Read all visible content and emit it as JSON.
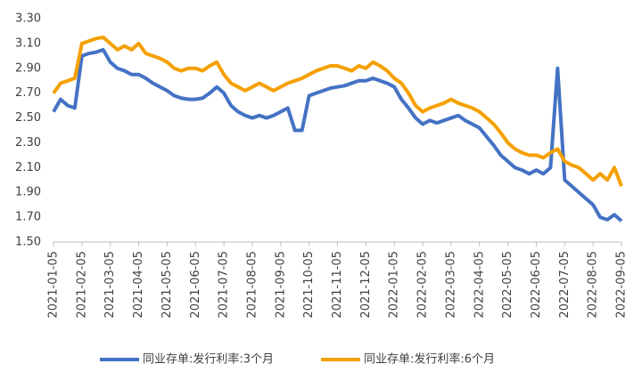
{
  "chart_data": {
    "type": "line",
    "categories": [
      "2021-01-05",
      null,
      null,
      null,
      "2021-02-05",
      null,
      null,
      null,
      "2021-03-05",
      null,
      null,
      null,
      "2021-04-05",
      null,
      null,
      null,
      "2021-05-05",
      null,
      null,
      null,
      "2021-06-05",
      null,
      null,
      null,
      "2021-07-05",
      null,
      null,
      null,
      "2021-08-05",
      null,
      null,
      null,
      "2021-09-05",
      null,
      null,
      null,
      "2021-10-05",
      null,
      null,
      null,
      "2021-11-05",
      null,
      null,
      null,
      "2021-12-05",
      null,
      null,
      null,
      "2022-01-05",
      null,
      null,
      null,
      "2022-02-05",
      null,
      null,
      null,
      "2022-03-05",
      null,
      null,
      null,
      "2022-04-05",
      null,
      null,
      null,
      "2022-05-05",
      null,
      null,
      null,
      "2022-06-05",
      null,
      null,
      null,
      "2022-07-05",
      null,
      null,
      null,
      "2022-08-05",
      null,
      null,
      null,
      "2022-09-05"
    ],
    "series": [
      {
        "name": "同业存单:发行利率:3个月",
        "color": "#4472c4",
        "values": [
          2.55,
          2.65,
          2.6,
          2.58,
          3.0,
          3.02,
          3.03,
          3.05,
          2.95,
          2.9,
          2.88,
          2.85,
          2.85,
          2.82,
          2.78,
          2.75,
          2.72,
          2.68,
          2.66,
          2.65,
          2.65,
          2.66,
          2.7,
          2.75,
          2.7,
          2.6,
          2.55,
          2.52,
          2.5,
          2.52,
          2.5,
          2.52,
          2.55,
          2.58,
          2.4,
          2.4,
          2.68,
          2.7,
          2.72,
          2.74,
          2.75,
          2.76,
          2.78,
          2.8,
          2.8,
          2.82,
          2.8,
          2.78,
          2.75,
          2.65,
          2.58,
          2.5,
          2.45,
          2.48,
          2.46,
          2.48,
          2.5,
          2.52,
          2.48,
          2.45,
          2.42,
          2.35,
          2.28,
          2.2,
          2.15,
          2.1,
          2.08,
          2.05,
          2.08,
          2.05,
          2.1,
          2.9,
          2.0,
          1.95,
          1.9,
          1.85,
          1.8,
          1.7,
          1.68,
          1.72,
          1.67
        ]
      },
      {
        "name": "同业存单:发行利率:6个月",
        "color": "#f5a000",
        "values": [
          2.7,
          2.78,
          2.8,
          2.82,
          3.1,
          3.12,
          3.14,
          3.15,
          3.1,
          3.05,
          3.08,
          3.05,
          3.1,
          3.02,
          3.0,
          2.98,
          2.95,
          2.9,
          2.88,
          2.9,
          2.9,
          2.88,
          2.92,
          2.95,
          2.85,
          2.78,
          2.75,
          2.72,
          2.75,
          2.78,
          2.75,
          2.72,
          2.75,
          2.78,
          2.8,
          2.82,
          2.85,
          2.88,
          2.9,
          2.92,
          2.92,
          2.9,
          2.88,
          2.92,
          2.9,
          2.95,
          2.92,
          2.88,
          2.82,
          2.78,
          2.7,
          2.6,
          2.55,
          2.58,
          2.6,
          2.62,
          2.65,
          2.62,
          2.6,
          2.58,
          2.55,
          2.5,
          2.45,
          2.38,
          2.3,
          2.25,
          2.22,
          2.2,
          2.2,
          2.18,
          2.22,
          2.25,
          2.15,
          2.12,
          2.1,
          2.05,
          2.0,
          2.05,
          2.0,
          2.1,
          1.95
        ]
      }
    ],
    "ylim": [
      1.5,
      3.3
    ],
    "yticks": [
      {
        "value": 1.5,
        "label": "1.50"
      },
      {
        "value": 1.7,
        "label": "1.70"
      },
      {
        "value": 1.9,
        "label": "1.90"
      },
      {
        "value": 2.1,
        "label": "2.10"
      },
      {
        "value": 2.3,
        "label": "2.30"
      },
      {
        "value": 2.5,
        "label": "2.50"
      },
      {
        "value": 2.7,
        "label": "2.70"
      },
      {
        "value": 2.9,
        "label": "2.90"
      },
      {
        "value": 3.1,
        "label": "3.10"
      },
      {
        "value": 3.3,
        "label": "3.30"
      }
    ],
    "grid": false
  }
}
